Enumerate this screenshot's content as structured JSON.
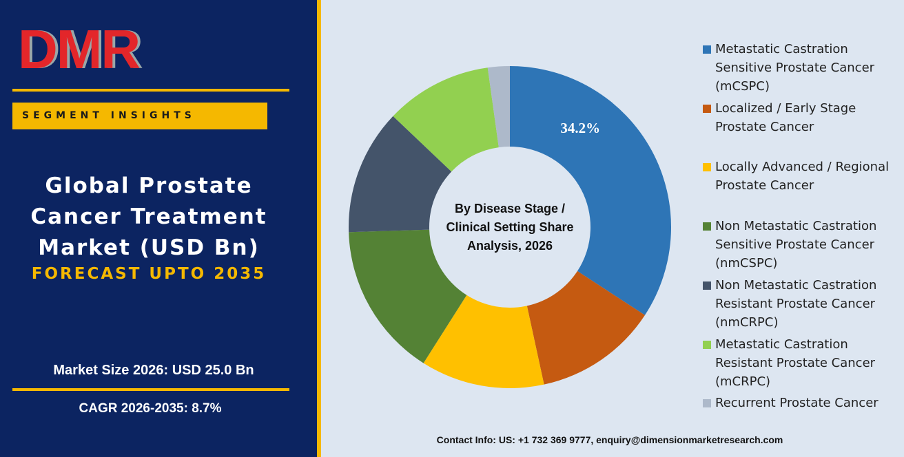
{
  "header": {
    "logo": "DMR",
    "badge": "SEGMENT INSIGHTS",
    "title": "Global Prostate Cancer Treatment Market (USD Bn)",
    "subtitle": "FORECAST UPTO 2035",
    "market_size": "Market Size 2026: USD 25.0 Bn",
    "cagr": "CAGR 2026-2035: 8.7%"
  },
  "chart_data": {
    "type": "donut",
    "center_label": "By Disease Stage / Clinical Setting Share Analysis, 2026",
    "categories": [
      "Metastatic Castration Sensitive Prostate Cancer (mCSPC)",
      "Localized / Early Stage Prostate Cancer",
      "Locally Advanced / Regional Prostate Cancer",
      "Non Metastatic Castration Sensitive Prostate Cancer (nmCSPC)",
      "Non Metastatic Castration Resistant Prostate Cancer (nmCRPC)",
      "Metastatic Castration Resistant Prostate Cancer (mCRPC)",
      "Recurrent Prostate Cancer"
    ],
    "values": [
      34.2,
      12.4,
      12.4,
      15.5,
      12.6,
      10.7,
      2.2
    ],
    "value_labels": [
      "34.2%",
      null,
      null,
      null,
      null,
      null,
      null
    ],
    "colors": [
      "#2e75b6",
      "#c55a11",
      "#ffc000",
      "#548235",
      "#44546a",
      "#92d050",
      "#adb9ca"
    ]
  },
  "footer": {
    "contact": "Contact Info: US: +1 732 369 9777, enquiry@dimensionmarketresearch.com"
  }
}
